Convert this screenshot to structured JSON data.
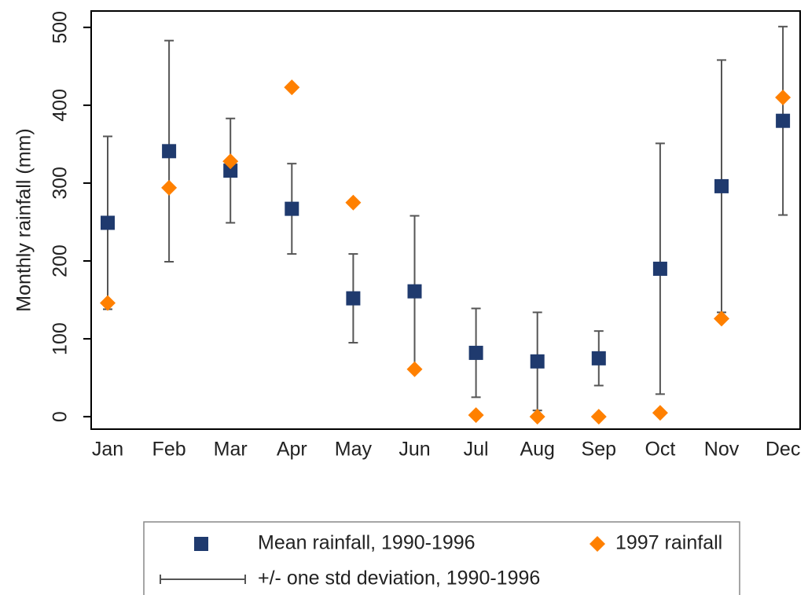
{
  "chart_data": {
    "type": "scatter",
    "y_label": "Monthly rainfall (mm)",
    "categories": [
      "Jan",
      "Feb",
      "Mar",
      "Apr",
      "May",
      "Jun",
      "Jul",
      "Aug",
      "Sep",
      "Oct",
      "Nov",
      "Dec"
    ],
    "series": [
      {
        "name": "Mean rainfall, 1990-1996",
        "color": "#1f3a6e",
        "marker": "square",
        "values": [
          249,
          341,
          316,
          267,
          152,
          161,
          82,
          71,
          75,
          190,
          296,
          380
        ],
        "error_name": "+/- one std deviation, 1990-1996",
        "error_color": "#555555",
        "errors": [
          111,
          142,
          67,
          58,
          57,
          97,
          57,
          63,
          35,
          161,
          162,
          121
        ]
      },
      {
        "name": "1997 rainfall",
        "color": "#ff8000",
        "marker": "diamond",
        "values": [
          146,
          294,
          328,
          423,
          275,
          61,
          2,
          0,
          0,
          5,
          126,
          410
        ]
      }
    ],
    "ylim": [
      -16,
      521
    ],
    "yticks": [
      0,
      100,
      200,
      300,
      400,
      500
    ],
    "grid": false
  }
}
